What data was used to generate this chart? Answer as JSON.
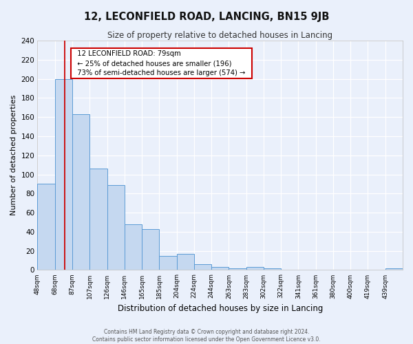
{
  "title": "12, LECONFIELD ROAD, LANCING, BN15 9JB",
  "subtitle": "Size of property relative to detached houses in Lancing",
  "xlabel": "Distribution of detached houses by size in Lancing",
  "ylabel": "Number of detached properties",
  "footer_line1": "Contains HM Land Registry data © Crown copyright and database right 2024.",
  "footer_line2": "Contains public sector information licensed under the Open Government Licence v3.0.",
  "bar_labels": [
    "48sqm",
    "68sqm",
    "87sqm",
    "107sqm",
    "126sqm",
    "146sqm",
    "165sqm",
    "185sqm",
    "204sqm",
    "224sqm",
    "244sqm",
    "263sqm",
    "283sqm",
    "302sqm",
    "322sqm",
    "341sqm",
    "361sqm",
    "380sqm",
    "400sqm",
    "419sqm",
    "439sqm"
  ],
  "bar_values": [
    90,
    200,
    163,
    106,
    89,
    48,
    43,
    15,
    17,
    6,
    3,
    2,
    3,
    2,
    0,
    0,
    0,
    0,
    0,
    0,
    2
  ],
  "bar_color": "#c5d8f0",
  "bar_edge_color": "#5b9bd5",
  "background_color": "#eaf0fb",
  "grid_color": "#ffffff",
  "ylim": [
    0,
    240
  ],
  "yticks": [
    0,
    20,
    40,
    60,
    80,
    100,
    120,
    140,
    160,
    180,
    200,
    220,
    240
  ],
  "red_line_color": "#cc0000",
  "red_line_index": 1.58,
  "annotation_title": "12 LECONFIELD ROAD: 79sqm",
  "annotation_line1": "← 25% of detached houses are smaller (196)",
  "annotation_line2": "73% of semi-detached houses are larger (574) →",
  "annotation_box_color": "#ffffff",
  "annotation_box_edge": "#cc0000"
}
